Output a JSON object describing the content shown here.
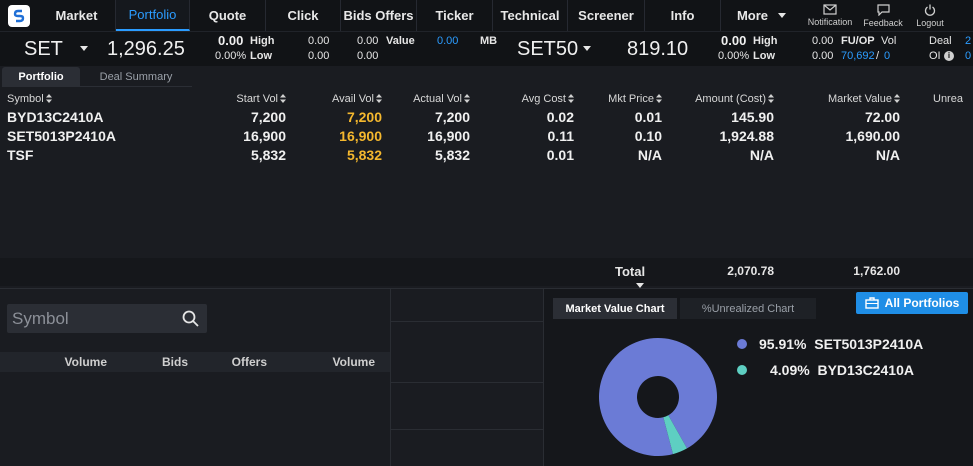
{
  "nav": {
    "items": [
      "Market",
      "Portfolio",
      "Quote",
      "Click",
      "Bids Offers",
      "Ticker",
      "Technical",
      "Screener",
      "Info"
    ],
    "more_label": "More",
    "notification_label": "Notification",
    "feedback_label": "Feedback",
    "logout_label": "Logout"
  },
  "ticker": {
    "set": {
      "name": "SET",
      "value": "1,296.25",
      "change": "0.00",
      "change_pct": "0.00%",
      "high_label": "High",
      "low_label": "Low",
      "high": "0.00",
      "low": "0.00",
      "high2": "0.00",
      "low2": "0.00",
      "value_label": "Value",
      "value_amount": "0.00",
      "mb_label": "MB"
    },
    "set50": {
      "name": "SET50",
      "value": "819.10",
      "change": "0.00",
      "change_pct": "0.00%",
      "high_label": "High",
      "low_label": "Low",
      "high": "0.00",
      "low": "0.00",
      "fuop_label": "FU/OP",
      "vol_label": "Vol",
      "vol": "70,692",
      "vol2": "0",
      "deal_label": "Deal",
      "deal": "2",
      "oi_label": "OI",
      "oi": "0"
    }
  },
  "tabs": [
    "Portfolio",
    "Deal Summary"
  ],
  "table": {
    "headers": [
      "Symbol",
      "Start Vol",
      "Avail Vol",
      "Actual Vol",
      "Avg Cost",
      "Mkt Price",
      "Amount (Cost)",
      "Market Value",
      "Unrea"
    ],
    "rows": [
      {
        "symbol": "BYD13C2410A",
        "start_vol": "7,200",
        "avail_vol": "7,200",
        "actual_vol": "7,200",
        "avg_cost": "0.02",
        "mkt_price": "0.01",
        "amount": "145.90",
        "market_value": "72.00"
      },
      {
        "symbol": "SET5013P2410A",
        "start_vol": "16,900",
        "avail_vol": "16,900",
        "actual_vol": "16,900",
        "avg_cost": "0.11",
        "mkt_price": "0.10",
        "amount": "1,924.88",
        "market_value": "1,690.00"
      },
      {
        "symbol": "TSF",
        "start_vol": "5,832",
        "avail_vol": "5,832",
        "actual_vol": "5,832",
        "avg_cost": "0.01",
        "mkt_price": "N/A",
        "amount": "N/A",
        "market_value": "N/A"
      }
    ],
    "total_label": "Total",
    "total_amount": "2,070.78",
    "total_market_value": "1,762.00"
  },
  "search": {
    "placeholder": "Symbol"
  },
  "orderbook": {
    "headers": [
      "Volume",
      "Bids",
      "Offers",
      "Volume"
    ]
  },
  "chart_panel": {
    "tabs": [
      "Market Value Chart",
      "%Unrealized Chart"
    ],
    "all_portfolios_label": "All Portfolios"
  },
  "colors": {
    "accent": "#2b9cff",
    "avail": "#f5b82e",
    "slice1": "#6b7bd6",
    "slice2": "#5ecfc2"
  },
  "chart_data": {
    "type": "pie",
    "slices": [
      {
        "label": "SET5013P2410A",
        "pct_label": "95.91%",
        "value": 95.91,
        "color": "#6b7bd6"
      },
      {
        "label": "BYD13C2410A",
        "pct_label": "4.09%",
        "value": 4.09,
        "color": "#5ecfc2"
      }
    ],
    "donut": true,
    "legend": "right"
  }
}
